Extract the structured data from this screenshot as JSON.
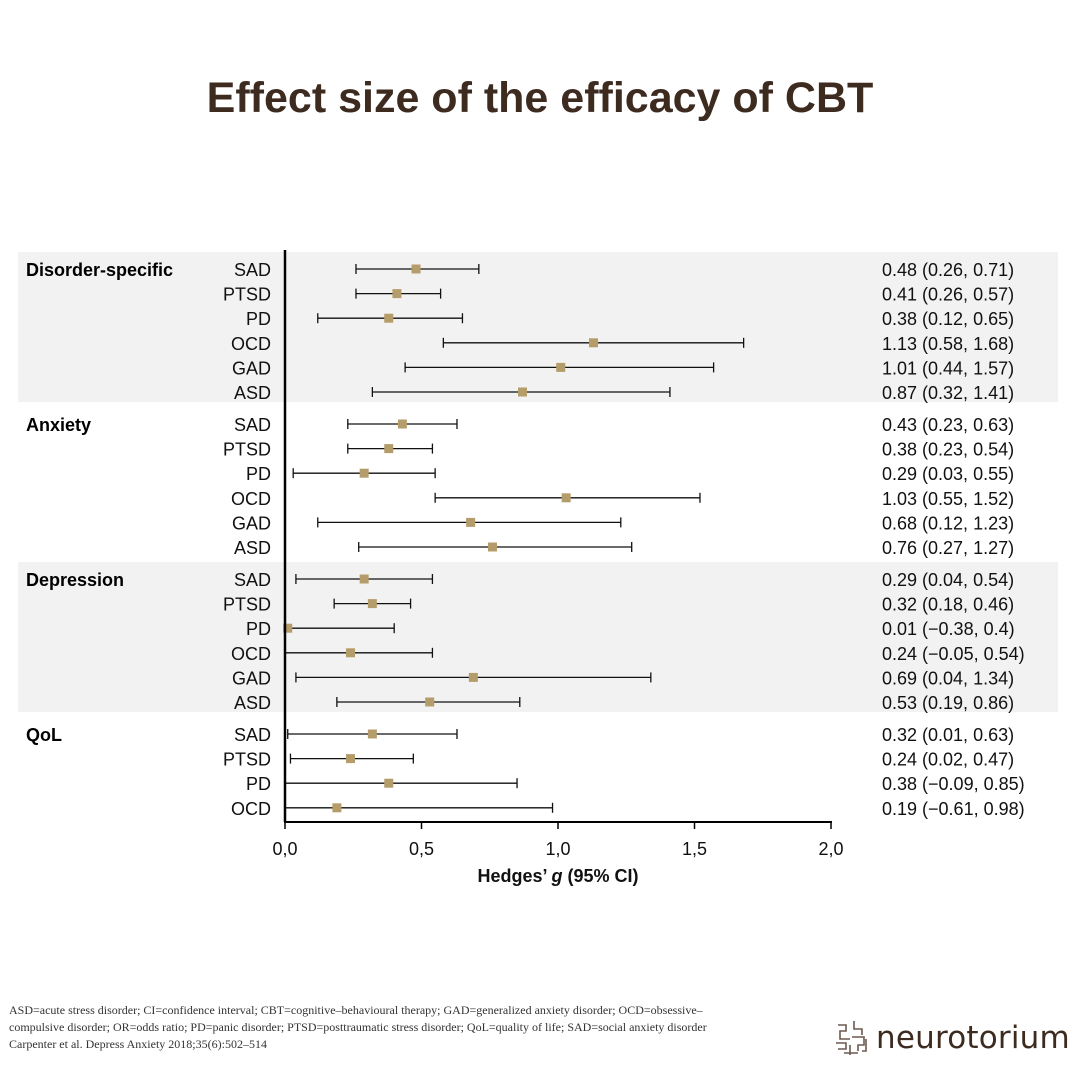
{
  "title": "Effect size of the efficacy of CBT",
  "colors": {
    "marker": "#b59d6b",
    "band": "#f2f2f2",
    "text": "#000000",
    "title": "#3d2b20"
  },
  "chart_data": {
    "type": "forest",
    "xlabel_prefix": "Hedges’ ",
    "xlabel_var": "g",
    "xlabel_suffix": " (95% CI)",
    "xlim": [
      0,
      2
    ],
    "xticks": [
      0,
      0.5,
      1.0,
      1.5,
      2.0
    ],
    "xtick_labels": [
      "0,0",
      "0,5",
      "1,0",
      "1,5",
      "2,0"
    ],
    "groups": [
      {
        "name": "Disorder-specific",
        "shaded": true,
        "rows": [
          {
            "label": "SAD",
            "g": 0.48,
            "lo": 0.26,
            "hi": 0.71,
            "text": "0.48 (0.26, 0.71)"
          },
          {
            "label": "PTSD",
            "g": 0.41,
            "lo": 0.26,
            "hi": 0.57,
            "text": "0.41 (0.26, 0.57)"
          },
          {
            "label": "PD",
            "g": 0.38,
            "lo": 0.12,
            "hi": 0.65,
            "text": "0.38 (0.12, 0.65)"
          },
          {
            "label": "OCD",
            "g": 1.13,
            "lo": 0.58,
            "hi": 1.68,
            "text": "1.13 (0.58, 1.68)"
          },
          {
            "label": "GAD",
            "g": 1.01,
            "lo": 0.44,
            "hi": 1.57,
            "text": "1.01 (0.44, 1.57)"
          },
          {
            "label": "ASD",
            "g": 0.87,
            "lo": 0.32,
            "hi": 1.41,
            "text": "0.87 (0.32, 1.41)"
          }
        ]
      },
      {
        "name": "Anxiety",
        "shaded": false,
        "rows": [
          {
            "label": "SAD",
            "g": 0.43,
            "lo": 0.23,
            "hi": 0.63,
            "text": "0.43 (0.23, 0.63)"
          },
          {
            "label": "PTSD",
            "g": 0.38,
            "lo": 0.23,
            "hi": 0.54,
            "text": "0.38 (0.23, 0.54)"
          },
          {
            "label": "PD",
            "g": 0.29,
            "lo": 0.03,
            "hi": 0.55,
            "text": "0.29 (0.03, 0.55)"
          },
          {
            "label": "OCD",
            "g": 1.03,
            "lo": 0.55,
            "hi": 1.52,
            "text": "1.03 (0.55, 1.52)"
          },
          {
            "label": "GAD",
            "g": 0.68,
            "lo": 0.12,
            "hi": 1.23,
            "text": "0.68 (0.12, 1.23)"
          },
          {
            "label": "ASD",
            "g": 0.76,
            "lo": 0.27,
            "hi": 1.27,
            "text": "0.76 (0.27, 1.27)"
          }
        ]
      },
      {
        "name": "Depression",
        "shaded": true,
        "rows": [
          {
            "label": "SAD",
            "g": 0.29,
            "lo": 0.04,
            "hi": 0.54,
            "text": "0.29 (0.04, 0.54)"
          },
          {
            "label": "PTSD",
            "g": 0.32,
            "lo": 0.18,
            "hi": 0.46,
            "text": "0.32 (0.18, 0.46)"
          },
          {
            "label": "PD",
            "g": 0.01,
            "lo": -0.38,
            "hi": 0.4,
            "text": "0.01 (−0.38, 0.4)"
          },
          {
            "label": "OCD",
            "g": 0.24,
            "lo": -0.05,
            "hi": 0.54,
            "text": "0.24 (−0.05, 0.54)"
          },
          {
            "label": "GAD",
            "g": 0.69,
            "lo": 0.04,
            "hi": 1.34,
            "text": "0.69 (0.04, 1.34)"
          },
          {
            "label": "ASD",
            "g": 0.53,
            "lo": 0.19,
            "hi": 0.86,
            "text": "0.53 (0.19, 0.86)"
          }
        ]
      },
      {
        "name": "QoL",
        "shaded": false,
        "rows": [
          {
            "label": "SAD",
            "g": 0.32,
            "lo": 0.01,
            "hi": 0.63,
            "text": "0.32 (0.01, 0.63)"
          },
          {
            "label": "PTSD",
            "g": 0.24,
            "lo": 0.02,
            "hi": 0.47,
            "text": "0.24 (0.02, 0.47)"
          },
          {
            "label": "PD",
            "g": 0.38,
            "lo": -0.09,
            "hi": 0.85,
            "text": "0.38 (−0.09, 0.85)"
          },
          {
            "label": "OCD",
            "g": 0.19,
            "lo": -0.61,
            "hi": 0.98,
            "text": "0.19 (−0.61, 0.98)"
          }
        ]
      }
    ]
  },
  "footnote": {
    "abbreviations": "ASD=acute stress disorder; CI=confidence interval; CBT=cognitive–behavioural therapy; GAD=generalized anxiety disorder; OCD=obsessive–compulsive disorder; OR=odds ratio; PD=panic disorder; PTSD=posttraumatic stress disorder; QoL=quality of life; SAD=social anxiety disorder",
    "citation": "Carpenter et al. Depress Anxiety 2018;35(6):502–514"
  },
  "logo": {
    "text": "neurotorium",
    "icon": "brain-maze-icon"
  }
}
